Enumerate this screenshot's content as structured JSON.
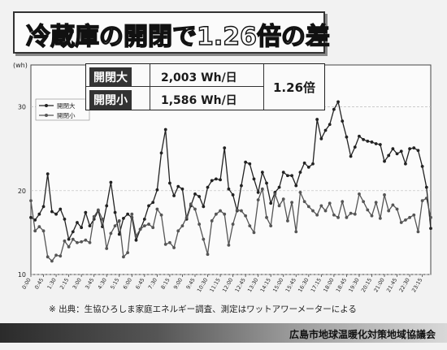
{
  "title": "冷蔵庫の開閉で1.26倍の差",
  "summary": {
    "rows": [
      {
        "label": "開閉大",
        "value": "2,003 Wh/日"
      },
      {
        "label": "開閉小",
        "value": "1,586 Wh/日"
      }
    ],
    "ratio": "1.26倍"
  },
  "footnote": "※ 出典：生協ひろしま家庭エネルギー調査、測定はワットアワーメーターによる",
  "organization": "広島市地球温暖化対策地域協議会",
  "chart_data": {
    "type": "line",
    "ylabel": "(wh)",
    "ylim": [
      10,
      35
    ],
    "yticks": [
      10,
      20,
      30
    ],
    "grid": true,
    "legend_position": "top-left",
    "x": [
      "0:00",
      "0:15",
      "0:30",
      "0:45",
      "1:00",
      "1:15",
      "1:30",
      "1:45",
      "2:00",
      "2:15",
      "2:30",
      "2:45",
      "3:00",
      "3:15",
      "3:30",
      "3:45",
      "4:00",
      "4:15",
      "4:30",
      "4:45",
      "5:00",
      "5:15",
      "5:30",
      "5:45",
      "6:00",
      "6:15",
      "6:30",
      "6:45",
      "7:00",
      "7:15",
      "7:30",
      "7:45",
      "8:00",
      "8:15",
      "8:30",
      "8:45",
      "9:00",
      "9:15",
      "9:30",
      "9:45",
      "10:00",
      "10:15",
      "10:30",
      "10:45",
      "11:00",
      "11:15",
      "11:30",
      "11:45",
      "12:00",
      "12:15",
      "12:30",
      "12:45",
      "13:00",
      "13:15",
      "13:30",
      "13:45",
      "14:00",
      "14:15",
      "14:30",
      "14:45",
      "15:00",
      "15:15",
      "15:30",
      "15:45",
      "16:00",
      "16:15",
      "16:30",
      "16:45",
      "17:00",
      "17:15",
      "17:30",
      "17:45",
      "18:00",
      "18:15",
      "18:30",
      "18:45",
      "19:00",
      "19:15",
      "19:30",
      "19:45",
      "20:00",
      "20:15",
      "20:30",
      "20:45",
      "21:00",
      "21:15",
      "21:30",
      "21:45",
      "22:00",
      "22:15",
      "22:30",
      "22:45",
      "23:00",
      "23:15",
      "23:30",
      "23:45"
    ],
    "xtick_labels": [
      "0:00",
      "0:45",
      "1:30",
      "2:15",
      "3:00",
      "3:45",
      "4:30",
      "5:15",
      "6:00",
      "6:45",
      "7:30",
      "8:15",
      "9:00",
      "9:45",
      "10:30",
      "11:15",
      "12:00",
      "12:45",
      "13:30",
      "14:15",
      "15:00",
      "15:45",
      "16:30",
      "17:15",
      "18:00",
      "18:45",
      "19:30",
      "20:15",
      "21:00",
      "21:45",
      "22:30",
      "23:15"
    ],
    "series": [
      {
        "name": "開閉大",
        "color": "#222222",
        "values": [
          16.8,
          16.5,
          17.2,
          18.1,
          22.0,
          17.5,
          17.2,
          17.8,
          16.6,
          14.2,
          15.1,
          16.2,
          15.6,
          17.4,
          15.8,
          16.6,
          17.6,
          15.7,
          18.2,
          21.0,
          17.4,
          14.8,
          16.7,
          17.2,
          16.8,
          14.1,
          15.4,
          16.6,
          18.2,
          18.6,
          20.1,
          24.5,
          27.3,
          20.9,
          19.4,
          20.5,
          20.2,
          16.6,
          18.2,
          19.6,
          19.3,
          18.1,
          20.4,
          21.2,
          21.4,
          21.3,
          25.1,
          20.2,
          19.5,
          17.6,
          20.6,
          23.4,
          23.2,
          21.4,
          19.8,
          22.2,
          20.9,
          18.5,
          19.8,
          20.4,
          22.2,
          21.8,
          21.8,
          20.6,
          22.2,
          23.3,
          22.8,
          23.2,
          28.5,
          26.2,
          27.2,
          27.9,
          29.7,
          30.6,
          28.3,
          26.4,
          24.1,
          25.2,
          26.5,
          26.1,
          25.9,
          25.8,
          25.6,
          25.5,
          23.5,
          24.2,
          25.0,
          24.4,
          24.7,
          23.2,
          25.0,
          25.1,
          24.8,
          22.9,
          20.4,
          15.5
        ]
      },
      {
        "name": "開閉小",
        "color": "#555555",
        "values": [
          18.8,
          15.2,
          15.7,
          15.2,
          12.1,
          11.6,
          12.3,
          12.2,
          14.0,
          13.3,
          14.2,
          13.8,
          13.9,
          14.1,
          13.8,
          16.9,
          17.7,
          16.6,
          13.1,
          14.9,
          15.8,
          16.4,
          12.1,
          12.6,
          17.2,
          14.6,
          15.4,
          15.8,
          16.0,
          15.6,
          17.8,
          17.1,
          13.6,
          13.8,
          13.2,
          15.2,
          15.8,
          16.8,
          18.4,
          17.8,
          16.0,
          14.2,
          12.4,
          16.4,
          17.2,
          17.6,
          17.2,
          13.5,
          16.0,
          17.7,
          17.6,
          17.0,
          15.8,
          15.0,
          18.9,
          20.2,
          16.8,
          15.8,
          19.6,
          18.2,
          19.0,
          16.4,
          18.6,
          15.1,
          19.8,
          18.7,
          18.1,
          17.6,
          17.1,
          18.2,
          17.6,
          18.5,
          17.1,
          16.8,
          18.7,
          16.8,
          17.3,
          17.2,
          19.6,
          18.7,
          17.7,
          17.0,
          18.6,
          16.7,
          19.5,
          17.6,
          18.3,
          17.8,
          16.2,
          16.5,
          16.8,
          17.1,
          15.1,
          18.8,
          19.1,
          16.8
        ]
      }
    ]
  }
}
